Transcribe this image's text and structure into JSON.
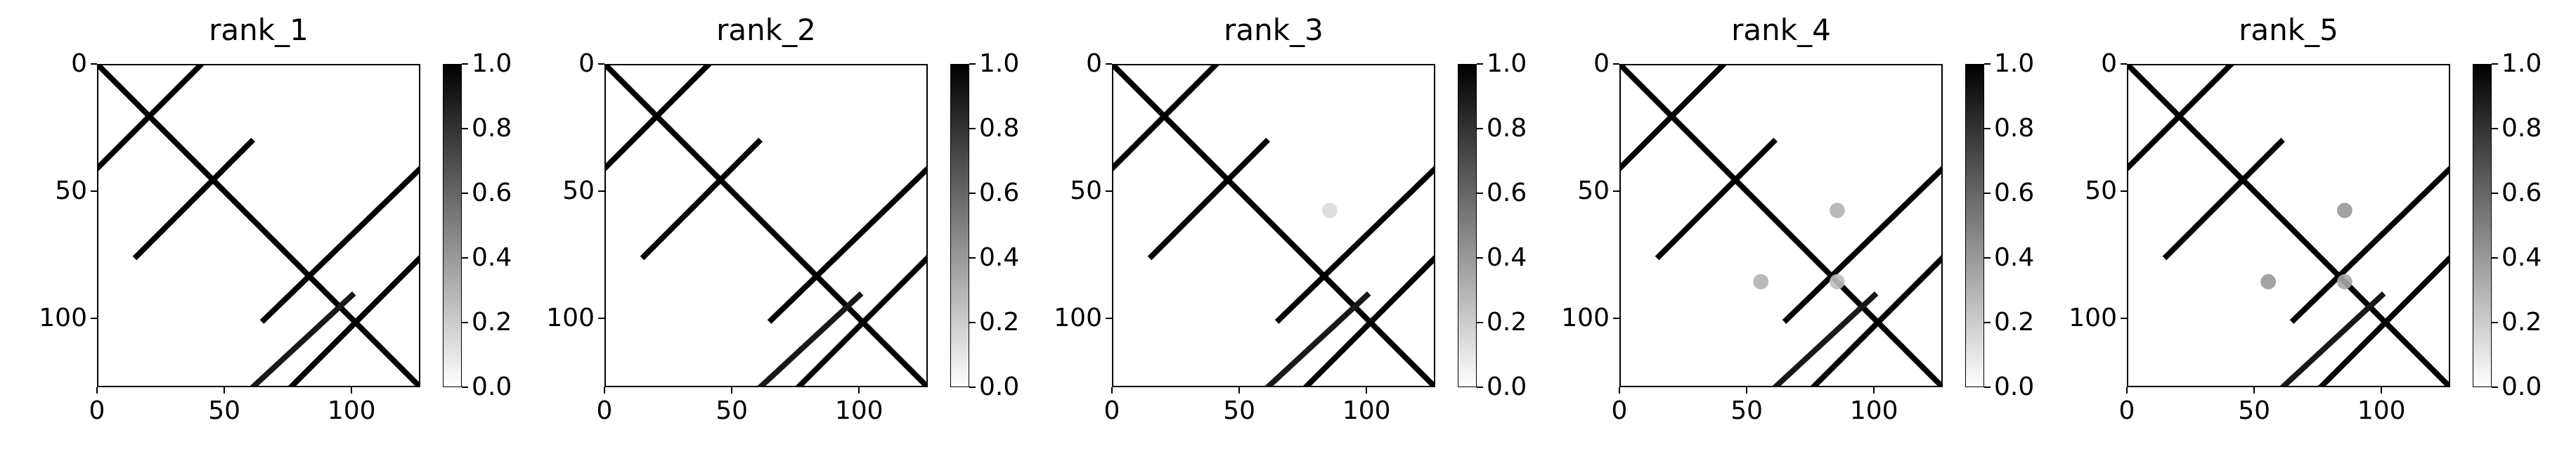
{
  "chart_data": [
    {
      "type": "heatmap",
      "title": "rank_1",
      "x_ticks": [
        "0",
        "50",
        "100"
      ],
      "y_ticks": [
        "0",
        "50",
        "100"
      ],
      "tick_values": [
        0,
        50,
        100
      ],
      "xlim": [
        0,
        127
      ],
      "ylim": [
        127,
        0
      ],
      "colormap": "Greys",
      "colorbar": {
        "ticks": [
          "0.0",
          "0.2",
          "0.4",
          "0.6",
          "0.8",
          "1.0"
        ],
        "range": [
          0.0,
          1.0
        ]
      },
      "diagonal_lines": [
        {
          "from": [
            0,
            0
          ],
          "to": [
            127,
            127
          ],
          "value": 1.0
        },
        {
          "from": [
            0,
            40
          ],
          "to": [
            40,
            0
          ],
          "value": 1.0
        },
        {
          "from": [
            15,
            75
          ],
          "to": [
            60,
            30
          ],
          "value": 1.0
        },
        {
          "from": [
            65,
            100
          ],
          "to": [
            127,
            40
          ],
          "value": 1.0
        },
        {
          "from": [
            75,
            127
          ],
          "to": [
            127,
            75
          ],
          "value": 1.0
        },
        {
          "from": [
            60,
            127
          ],
          "to": [
            100,
            90
          ],
          "value": 0.9
        }
      ],
      "fuzzy_spots": []
    },
    {
      "type": "heatmap",
      "title": "rank_2",
      "x_ticks": [
        "0",
        "50",
        "100"
      ],
      "y_ticks": [
        "0",
        "50",
        "100"
      ],
      "tick_values": [
        0,
        50,
        100
      ],
      "xlim": [
        0,
        127
      ],
      "ylim": [
        127,
        0
      ],
      "colormap": "Greys",
      "colorbar": {
        "ticks": [
          "0.0",
          "0.2",
          "0.4",
          "0.6",
          "0.8",
          "1.0"
        ],
        "range": [
          0.0,
          1.0
        ]
      },
      "diagonal_lines": [
        {
          "from": [
            0,
            0
          ],
          "to": [
            127,
            127
          ],
          "value": 1.0
        },
        {
          "from": [
            0,
            40
          ],
          "to": [
            40,
            0
          ],
          "value": 1.0
        },
        {
          "from": [
            15,
            75
          ],
          "to": [
            60,
            30
          ],
          "value": 1.0
        },
        {
          "from": [
            65,
            100
          ],
          "to": [
            127,
            40
          ],
          "value": 1.0
        },
        {
          "from": [
            75,
            127
          ],
          "to": [
            127,
            75
          ],
          "value": 1.0
        },
        {
          "from": [
            60,
            127
          ],
          "to": [
            100,
            90
          ],
          "value": 0.9
        }
      ],
      "fuzzy_spots": []
    },
    {
      "type": "heatmap",
      "title": "rank_3",
      "x_ticks": [
        "0",
        "50",
        "100"
      ],
      "y_ticks": [
        "0",
        "50",
        "100"
      ],
      "tick_values": [
        0,
        50,
        100
      ],
      "xlim": [
        0,
        127
      ],
      "ylim": [
        127,
        0
      ],
      "colormap": "Greys",
      "colorbar": {
        "ticks": [
          "0.0",
          "0.2",
          "0.4",
          "0.6",
          "0.8",
          "1.0"
        ],
        "range": [
          0.0,
          1.0
        ]
      },
      "diagonal_lines": [
        {
          "from": [
            0,
            0
          ],
          "to": [
            127,
            127
          ],
          "value": 1.0
        },
        {
          "from": [
            0,
            40
          ],
          "to": [
            40,
            0
          ],
          "value": 1.0
        },
        {
          "from": [
            15,
            75
          ],
          "to": [
            60,
            30
          ],
          "value": 1.0
        },
        {
          "from": [
            65,
            100
          ],
          "to": [
            127,
            40
          ],
          "value": 1.0
        },
        {
          "from": [
            75,
            127
          ],
          "to": [
            127,
            75
          ],
          "value": 1.0
        },
        {
          "from": [
            60,
            127
          ],
          "to": [
            100,
            90
          ],
          "value": 0.9
        }
      ],
      "fuzzy_spots": [
        {
          "x": 85,
          "y": 57,
          "value": 0.15
        }
      ]
    },
    {
      "type": "heatmap",
      "title": "rank_4",
      "x_ticks": [
        "0",
        "50",
        "100"
      ],
      "y_ticks": [
        "0",
        "50",
        "100"
      ],
      "tick_values": [
        0,
        50,
        100
      ],
      "xlim": [
        0,
        127
      ],
      "ylim": [
        127,
        0
      ],
      "colormap": "Greys",
      "colorbar": {
        "ticks": [
          "0.0",
          "0.2",
          "0.4",
          "0.6",
          "0.8",
          "1.0"
        ],
        "range": [
          0.0,
          1.0
        ]
      },
      "diagonal_lines": [
        {
          "from": [
            0,
            0
          ],
          "to": [
            127,
            127
          ],
          "value": 1.0
        },
        {
          "from": [
            0,
            40
          ],
          "to": [
            40,
            0
          ],
          "value": 1.0
        },
        {
          "from": [
            15,
            75
          ],
          "to": [
            60,
            30
          ],
          "value": 1.0
        },
        {
          "from": [
            65,
            100
          ],
          "to": [
            127,
            40
          ],
          "value": 1.0
        },
        {
          "from": [
            75,
            127
          ],
          "to": [
            127,
            75
          ],
          "value": 1.0
        },
        {
          "from": [
            60,
            127
          ],
          "to": [
            100,
            90
          ],
          "value": 0.9
        }
      ],
      "fuzzy_spots": [
        {
          "x": 85,
          "y": 57,
          "value": 0.3
        },
        {
          "x": 55,
          "y": 85,
          "value": 0.3
        },
        {
          "x": 85,
          "y": 85,
          "value": 0.25
        }
      ]
    },
    {
      "type": "heatmap",
      "title": "rank_5",
      "x_ticks": [
        "0",
        "50",
        "100"
      ],
      "y_ticks": [
        "0",
        "50",
        "100"
      ],
      "tick_values": [
        0,
        50,
        100
      ],
      "xlim": [
        0,
        127
      ],
      "ylim": [
        127,
        0
      ],
      "colormap": "Greys",
      "colorbar": {
        "ticks": [
          "0.0",
          "0.2",
          "0.4",
          "0.6",
          "0.8",
          "1.0"
        ],
        "range": [
          0.0,
          1.0
        ]
      },
      "diagonal_lines": [
        {
          "from": [
            0,
            0
          ],
          "to": [
            127,
            127
          ],
          "value": 1.0
        },
        {
          "from": [
            0,
            40
          ],
          "to": [
            40,
            0
          ],
          "value": 1.0
        },
        {
          "from": [
            15,
            75
          ],
          "to": [
            60,
            30
          ],
          "value": 1.0
        },
        {
          "from": [
            65,
            100
          ],
          "to": [
            127,
            40
          ],
          "value": 1.0
        },
        {
          "from": [
            75,
            127
          ],
          "to": [
            127,
            75
          ],
          "value": 1.0
        },
        {
          "from": [
            60,
            127
          ],
          "to": [
            100,
            90
          ],
          "value": 0.9
        }
      ],
      "fuzzy_spots": [
        {
          "x": 85,
          "y": 57,
          "value": 0.4
        },
        {
          "x": 55,
          "y": 85,
          "value": 0.4
        },
        {
          "x": 85,
          "y": 85,
          "value": 0.35
        }
      ]
    }
  ]
}
